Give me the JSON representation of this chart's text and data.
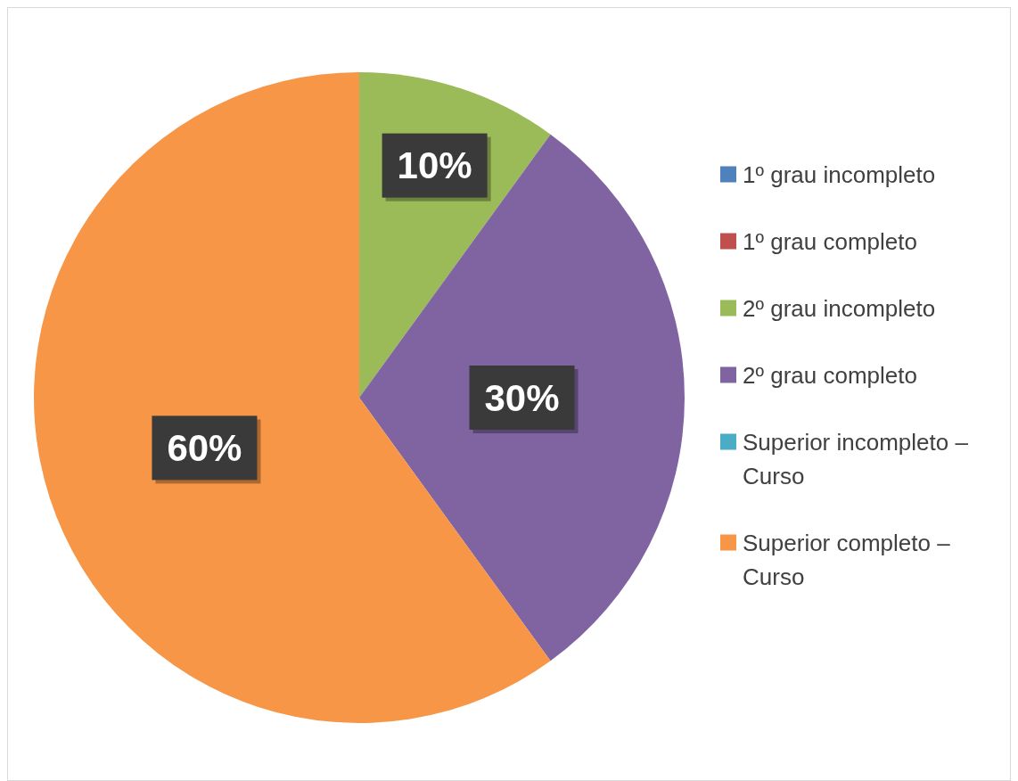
{
  "chart_data": {
    "type": "pie",
    "categories": [
      "1º grau incompleto",
      "1º grau completo",
      "2º grau incompleto",
      "2º grau completo",
      "Superior incompleto – Curso",
      "Superior completo – Curso"
    ],
    "values": [
      0,
      0,
      10,
      30,
      0,
      60
    ],
    "colors": [
      "#4f81bd",
      "#c0504d",
      "#9bbb59",
      "#8064a2",
      "#4bacc6",
      "#f79646"
    ],
    "value_labels": [
      null,
      null,
      "10%",
      "30%",
      null,
      "60%"
    ],
    "legend": "right"
  }
}
